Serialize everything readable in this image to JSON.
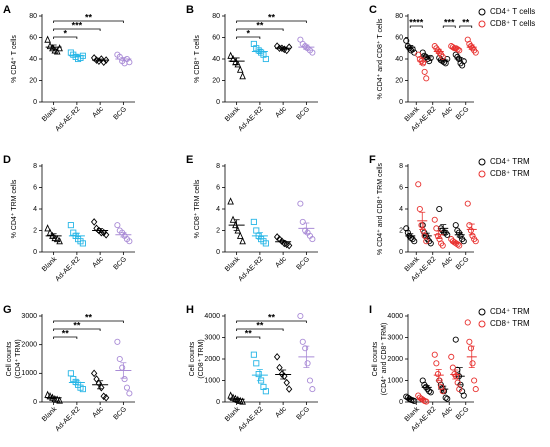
{
  "chart_data": [
    {
      "type": "dot",
      "title": "A",
      "ylabel": "% CD4⁺ T cells",
      "categories": [
        "Blank",
        "Ad-AE-R2",
        "Adc",
        "BCG"
      ],
      "ylim": [
        0,
        80
      ],
      "yticks": [
        0,
        20,
        40,
        60,
        80
      ],
      "markers": [
        "triangle",
        "square",
        "diamond",
        "circle"
      ],
      "series": [
        {
          "color": [
            "#000000",
            "#27b6e6",
            "#000000",
            "#a98bd6"
          ],
          "values": [
            [
              58,
              52,
              50,
              48,
              47,
              50
            ],
            [
              46,
              44,
              42,
              40,
              41,
              43
            ],
            [
              41,
              39,
              38,
              40,
              37,
              39
            ],
            [
              44,
              42,
              38,
              36,
              40,
              37
            ]
          ],
          "means": [
            51,
            43,
            39,
            40
          ],
          "errors": [
            2,
            1,
            1,
            1.3
          ]
        }
      ],
      "brackets": [
        {
          "between": [
            0,
            1
          ],
          "label": "*"
        },
        {
          "between": [
            0,
            2
          ],
          "label": "***"
        },
        {
          "between": [
            0,
            3
          ],
          "label": "**"
        }
      ]
    },
    {
      "type": "dot",
      "title": "B",
      "ylabel": "% CD8⁺ T cells",
      "categories": [
        "Blank",
        "Ad-AE-R2",
        "Adc",
        "BCG"
      ],
      "ylim": [
        0,
        80
      ],
      "yticks": [
        0,
        20,
        40,
        60,
        80
      ],
      "markers": [
        "triangle",
        "square",
        "diamond",
        "circle"
      ],
      "series": [
        {
          "color": [
            "#000000",
            "#27b6e6",
            "#000000",
            "#a98bd6"
          ],
          "values": [
            [
              43,
              40,
              37,
              35,
              30,
              24
            ],
            [
              54,
              50,
              48,
              46,
              44,
              40
            ],
            [
              52,
              50,
              50,
              49,
              48,
              51
            ],
            [
              58,
              54,
              52,
              50,
              48,
              46
            ]
          ],
          "means": [
            38,
            47,
            50,
            51
          ],
          "errors": [
            3,
            2,
            1,
            2
          ]
        }
      ],
      "brackets": [
        {
          "between": [
            0,
            1
          ],
          "label": "*"
        },
        {
          "between": [
            0,
            2
          ],
          "label": "**"
        },
        {
          "between": [
            0,
            3
          ],
          "label": "**"
        }
      ]
    },
    {
      "type": "dot",
      "title": "C",
      "ylabel": "% CD4⁺ and CD8⁺ T cells",
      "categories": [
        "Blank",
        "Ad-AE-R2",
        "Adc",
        "BCG"
      ],
      "ylim": [
        0,
        80
      ],
      "yticks": [
        0,
        20,
        40,
        60,
        80
      ],
      "markers": [
        "circle",
        "circle",
        "circle",
        "circle"
      ],
      "series": [
        {
          "name": "CD4⁺ T cells",
          "color": "#000000",
          "values": [
            [
              57,
              52,
              50,
              48,
              49,
              46
            ],
            [
              46,
              43,
              42,
              40,
              38,
              41
            ],
            [
              41,
              39,
              38,
              37,
              36,
              40
            ],
            [
              44,
              42,
              40,
              36,
              34,
              38
            ]
          ],
          "means": [
            51,
            42,
            39,
            40
          ],
          "errors": [
            1.5,
            1,
            1,
            1.5
          ]
        },
        {
          "name": "CD8⁺ T cells",
          "color": "#e8312f",
          "values": [
            [
              44,
              40,
              38,
              36,
              28,
              22
            ],
            [
              52,
              50,
              48,
              46,
              44,
              42
            ],
            [
              52,
              51,
              50,
              50,
              49,
              48
            ],
            [
              58,
              54,
              52,
              50,
              48,
              46
            ]
          ],
          "means": [
            38,
            47,
            50,
            51
          ],
          "errors": [
            3,
            2,
            1,
            2
          ]
        }
      ],
      "brackets": [
        {
          "within": 0,
          "label": "****"
        },
        {
          "within": 2,
          "label": "***"
        },
        {
          "within": 3,
          "label": "**"
        }
      ]
    },
    {
      "type": "dot",
      "title": "D",
      "ylabel": "% CD4⁺ TRM cells",
      "categories": [
        "Blank",
        "Ad-AE-R2",
        "Adc",
        "BCG"
      ],
      "ylim": [
        0,
        8
      ],
      "yticks": [
        0,
        2,
        4,
        6,
        8
      ],
      "markers": [
        "triangle",
        "square",
        "diamond",
        "circle"
      ],
      "series": [
        {
          "color": [
            "#000000",
            "#27b6e6",
            "#000000",
            "#a98bd6"
          ],
          "values": [
            [
              2.2,
              1.8,
              1.5,
              1.3,
              1.2,
              1.0
            ],
            [
              2.5,
              1.8,
              1.5,
              1.2,
              1.0,
              0.8
            ],
            [
              2.8,
              2.2,
              2.0,
              1.8,
              1.8,
              1.6
            ],
            [
              2.5,
              2.0,
              1.8,
              1.5,
              1.2,
              1.0
            ]
          ],
          "means": [
            1.5,
            1.5,
            2.0,
            1.6
          ],
          "errors": [
            0.2,
            0.25,
            0.2,
            0.2
          ]
        }
      ],
      "brackets": []
    },
    {
      "type": "dot",
      "title": "E",
      "ylabel": "% CD8⁺ TRM cells",
      "categories": [
        "Blank",
        "Ad-AE-R2",
        "Adc",
        "BCG"
      ],
      "ylim": [
        0,
        8
      ],
      "yticks": [
        0,
        2,
        4,
        6,
        8
      ],
      "markers": [
        "triangle",
        "square",
        "diamond",
        "circle"
      ],
      "series": [
        {
          "color": [
            "#000000",
            "#27b6e6",
            "#000000",
            "#a98bd6"
          ],
          "values": [
            [
              4.7,
              3.0,
              2.5,
              2.0,
              1.5,
              1.0
            ],
            [
              2.8,
              2.0,
              1.5,
              1.2,
              1.0,
              0.8
            ],
            [
              1.4,
              1.2,
              1.0,
              0.8,
              0.7,
              0.6
            ],
            [
              4.5,
              2.8,
              2.0,
              1.8,
              1.5,
              1.2
            ]
          ],
          "means": [
            2.5,
            1.5,
            0.95,
            2.2
          ],
          "errors": [
            0.5,
            0.3,
            0.12,
            0.5
          ]
        }
      ],
      "brackets": []
    },
    {
      "type": "dot",
      "title": "F",
      "ylabel": "% CD4⁺ and CD8⁺ TRM cells",
      "categories": [
        "Blank",
        "Ad-AE-R2",
        "Adc",
        "BCG"
      ],
      "ylim": [
        0,
        8
      ],
      "yticks": [
        0,
        2,
        4,
        6,
        8
      ],
      "markers": [
        "circle",
        "circle",
        "circle",
        "circle"
      ],
      "series": [
        {
          "name": "CD4⁺ TRM",
          "color": "#000000",
          "values": [
            [
              2.2,
              1.8,
              1.5,
              1.3,
              1.2,
              1.0
            ],
            [
              2.5,
              1.8,
              1.5,
              1.2,
              1.0,
              0.8
            ],
            [
              4.0,
              2.2,
              2.0,
              1.8,
              1.8,
              1.6
            ],
            [
              2.5,
              2.0,
              1.8,
              1.5,
              1.2,
              1.0
            ]
          ],
          "means": [
            1.5,
            1.5,
            2.2,
            1.6
          ],
          "errors": [
            0.2,
            0.25,
            0.35,
            0.2
          ]
        },
        {
          "name": "CD8⁺ TRM",
          "color": "#e8312f",
          "values": [
            [
              6.3,
              4.0,
              2.5,
              2.0,
              1.5,
              1.0
            ],
            [
              3.0,
              2.2,
              1.5,
              1.2,
              0.8,
              0.6
            ],
            [
              1.2,
              1.0,
              0.9,
              0.8,
              0.7,
              0.6
            ],
            [
              4.5,
              2.5,
              2.0,
              1.5,
              1.2,
              1.0
            ]
          ],
          "means": [
            2.9,
            1.6,
            0.9,
            2.1
          ],
          "errors": [
            0.8,
            0.35,
            0.1,
            0.5
          ]
        }
      ],
      "brackets": []
    },
    {
      "type": "dot",
      "title": "G",
      "ylabel": [
        "Cell counts",
        "(CD4⁺ TRM)"
      ],
      "categories": [
        "Blank",
        "Ad-AE-R2",
        "Adc",
        "BCG"
      ],
      "ylim": [
        0,
        3000
      ],
      "yticks": [
        0,
        1000,
        2000,
        3000
      ],
      "markers": [
        "triangle",
        "square",
        "diamond",
        "circle"
      ],
      "series": [
        {
          "color": [
            "#000000",
            "#27b6e6",
            "#000000",
            "#a98bd6"
          ],
          "values": [
            [
              250,
              200,
              150,
              100,
              80,
              50
            ],
            [
              1000,
              800,
              700,
              600,
              500,
              450
            ],
            [
              1000,
              800,
              650,
              500,
              200,
              150
            ],
            [
              2100,
              1500,
              1200,
              800,
              500,
              300
            ]
          ],
          "means": [
            150,
            680,
            600,
            1100
          ],
          "errors": [
            30,
            80,
            140,
            270
          ]
        }
      ],
      "brackets": [
        {
          "between": [
            0,
            1
          ],
          "label": "**"
        },
        {
          "between": [
            0,
            2
          ],
          "label": "**"
        },
        {
          "between": [
            0,
            3
          ],
          "label": "**"
        }
      ]
    },
    {
      "type": "dot",
      "title": "H",
      "ylabel": [
        "Cell counts",
        "(CD8⁺ TRM)"
      ],
      "categories": [
        "Blank",
        "Ad-AE-R2",
        "Adc",
        "BCG"
      ],
      "ylim": [
        0,
        4000
      ],
      "yticks": [
        0,
        1000,
        2000,
        3000,
        4000
      ],
      "markers": [
        "triangle",
        "square",
        "diamond",
        "circle"
      ],
      "series": [
        {
          "color": [
            "#000000",
            "#27b6e6",
            "#000000",
            "#a98bd6"
          ],
          "values": [
            [
              300,
              200,
              150,
              100,
              50,
              20
            ],
            [
              2200,
              1800,
              1300,
              1000,
              700,
              500
            ],
            [
              2100,
              1600,
              1300,
              1200,
              900,
              600
            ],
            [
              4000,
              2800,
              2500,
              1800,
              1000,
              600
            ]
          ],
          "means": [
            130,
            1250,
            1280,
            2100
          ],
          "errors": [
            40,
            260,
            210,
            500
          ]
        }
      ],
      "brackets": [
        {
          "between": [
            0,
            1
          ],
          "label": "**"
        },
        {
          "between": [
            0,
            2
          ],
          "label": "**"
        },
        {
          "between": [
            0,
            3
          ],
          "label": "**"
        }
      ]
    },
    {
      "type": "dot",
      "title": "I",
      "ylabel": [
        "Cell counts",
        "(CD4⁺ and CD8⁺ TRM)"
      ],
      "categories": [
        "Blank",
        "Ad-AE-R2",
        "Adc",
        "BCG"
      ],
      "ylim": [
        0,
        4000
      ],
      "yticks": [
        0,
        1000,
        2000,
        3000,
        4000
      ],
      "markers": [
        "circle",
        "circle",
        "circle",
        "circle"
      ],
      "series": [
        {
          "name": "CD4⁺ TRM",
          "color": "#000000",
          "values": [
            [
              250,
              200,
              150,
              100,
              80,
              50
            ],
            [
              1000,
              800,
              700,
              600,
              500,
              450
            ],
            [
              1000,
              800,
              650,
              500,
              200,
              150
            ],
            [
              2900,
              1500,
              1200,
              800,
              500,
              300
            ]
          ],
          "means": [
            150,
            680,
            600,
            1200
          ],
          "errors": [
            30,
            80,
            140,
            400
          ]
        },
        {
          "name": "CD8⁺ TRM",
          "color": "#e8312f",
          "values": [
            [
              300,
              200,
              150,
              100,
              50,
              20
            ],
            [
              2200,
              1800,
              1300,
              1000,
              700,
              500
            ],
            [
              2100,
              1600,
              1300,
              1200,
              900,
              600
            ],
            [
              3700,
              2800,
              2500,
              1800,
              1000,
              600
            ]
          ],
          "means": [
            130,
            1250,
            1280,
            2100
          ],
          "errors": [
            40,
            260,
            210,
            500
          ]
        }
      ],
      "brackets": []
    }
  ]
}
